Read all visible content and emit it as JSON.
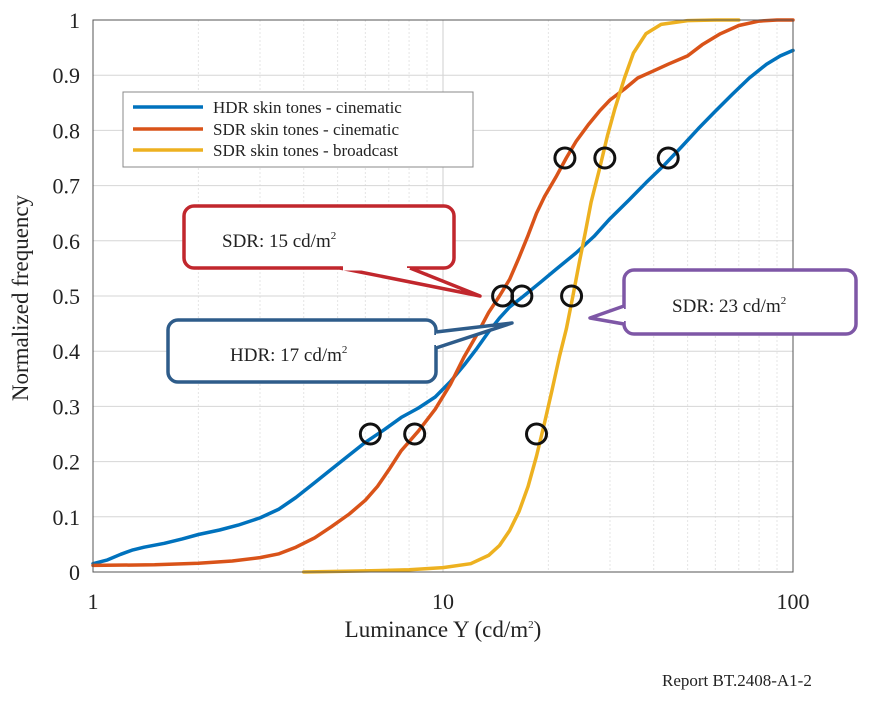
{
  "chart_data": {
    "type": "line",
    "xscale": "log",
    "xlim": [
      1,
      100
    ],
    "ylim": [
      0,
      1
    ],
    "xlabel": "Luminance Y (cd/m",
    "xlabel_sup": "2",
    "xlabel_end": ")",
    "ylabel": "Normalized frequency",
    "xticks": [
      1,
      10,
      100
    ],
    "xtick_labels": [
      "1",
      "10",
      "100"
    ],
    "yticks": [
      0,
      0.1,
      0.2,
      0.3,
      0.4,
      0.5,
      0.6,
      0.7,
      0.8,
      0.9,
      1
    ],
    "ytick_labels": [
      "0",
      "0.1",
      "0.2",
      "0.3",
      "0.4",
      "0.5",
      "0.6",
      "0.7",
      "0.8",
      "0.9",
      "1"
    ],
    "grid": true,
    "legend_position": "top-left",
    "series": [
      {
        "name": "HDR skin tones - cinematic",
        "color": "#0072BD",
        "points": [
          [
            1,
            0.015
          ],
          [
            1.1,
            0.022
          ],
          [
            1.2,
            0.032
          ],
          [
            1.3,
            0.04
          ],
          [
            1.4,
            0.045
          ],
          [
            1.6,
            0.052
          ],
          [
            1.8,
            0.06
          ],
          [
            2,
            0.068
          ],
          [
            2.3,
            0.076
          ],
          [
            2.6,
            0.085
          ],
          [
            3,
            0.098
          ],
          [
            3.4,
            0.114
          ],
          [
            3.8,
            0.135
          ],
          [
            4.3,
            0.162
          ],
          [
            4.8,
            0.186
          ],
          [
            5.4,
            0.212
          ],
          [
            6,
            0.235
          ],
          [
            6.8,
            0.258
          ],
          [
            7.6,
            0.28
          ],
          [
            8.5,
            0.297
          ],
          [
            9.5,
            0.317
          ],
          [
            10.5,
            0.345
          ],
          [
            11.5,
            0.375
          ],
          [
            12.5,
            0.405
          ],
          [
            13.5,
            0.435
          ],
          [
            14.5,
            0.46
          ],
          [
            15.5,
            0.48
          ],
          [
            17,
            0.5
          ],
          [
            19,
            0.525
          ],
          [
            21,
            0.548
          ],
          [
            24,
            0.578
          ],
          [
            27,
            0.608
          ],
          [
            30,
            0.64
          ],
          [
            34,
            0.674
          ],
          [
            38,
            0.705
          ],
          [
            43,
            0.738
          ],
          [
            48,
            0.77
          ],
          [
            54,
            0.805
          ],
          [
            60,
            0.835
          ],
          [
            67,
            0.865
          ],
          [
            75,
            0.895
          ],
          [
            84,
            0.92
          ],
          [
            92,
            0.935
          ],
          [
            100,
            0.945
          ]
        ]
      },
      {
        "name": "SDR skin tones - cinematic",
        "color": "#D95319",
        "points": [
          [
            1,
            0.012
          ],
          [
            1.5,
            0.013
          ],
          [
            2,
            0.016
          ],
          [
            2.5,
            0.02
          ],
          [
            3,
            0.026
          ],
          [
            3.4,
            0.033
          ],
          [
            3.8,
            0.045
          ],
          [
            4.3,
            0.062
          ],
          [
            4.8,
            0.082
          ],
          [
            5.4,
            0.105
          ],
          [
            6,
            0.13
          ],
          [
            6.5,
            0.155
          ],
          [
            7,
            0.185
          ],
          [
            7.6,
            0.22
          ],
          [
            8.5,
            0.255
          ],
          [
            9.5,
            0.295
          ],
          [
            10.5,
            0.34
          ],
          [
            11.5,
            0.39
          ],
          [
            12.5,
            0.43
          ],
          [
            13.5,
            0.47
          ],
          [
            14.5,
            0.5
          ],
          [
            15.5,
            0.53
          ],
          [
            16.5,
            0.57
          ],
          [
            17.5,
            0.61
          ],
          [
            18.5,
            0.65
          ],
          [
            19.5,
            0.68
          ],
          [
            21,
            0.715
          ],
          [
            22.5,
            0.75
          ],
          [
            24,
            0.78
          ],
          [
            26,
            0.81
          ],
          [
            28,
            0.835
          ],
          [
            30,
            0.855
          ],
          [
            33,
            0.875
          ],
          [
            36,
            0.895
          ],
          [
            40,
            0.908
          ],
          [
            44,
            0.92
          ],
          [
            50,
            0.935
          ],
          [
            55,
            0.955
          ],
          [
            62,
            0.975
          ],
          [
            70,
            0.99
          ],
          [
            80,
            0.998
          ],
          [
            90,
            1.0
          ],
          [
            100,
            1.0
          ]
        ]
      },
      {
        "name": "SDR skin tones - broadcast",
        "color": "#EDB120",
        "points": [
          [
            4,
            0.0
          ],
          [
            6,
            0.002
          ],
          [
            8,
            0.004
          ],
          [
            10,
            0.008
          ],
          [
            12,
            0.015
          ],
          [
            13.5,
            0.03
          ],
          [
            14.5,
            0.048
          ],
          [
            15.5,
            0.075
          ],
          [
            16.5,
            0.11
          ],
          [
            17.5,
            0.155
          ],
          [
            18.5,
            0.21
          ],
          [
            19.5,
            0.27
          ],
          [
            20.5,
            0.33
          ],
          [
            21.5,
            0.39
          ],
          [
            22.5,
            0.44
          ],
          [
            23.5,
            0.5
          ],
          [
            24.5,
            0.56
          ],
          [
            25.5,
            0.615
          ],
          [
            26.5,
            0.67
          ],
          [
            28,
            0.73
          ],
          [
            29.5,
            0.79
          ],
          [
            31,
            0.84
          ],
          [
            33,
            0.895
          ],
          [
            35,
            0.94
          ],
          [
            38,
            0.975
          ],
          [
            42,
            0.992
          ],
          [
            50,
            0.999
          ],
          [
            60,
            1.0
          ],
          [
            70,
            1.0
          ]
        ]
      }
    ],
    "markers": [
      [
        6.2,
        0.25
      ],
      [
        8.3,
        0.25
      ],
      [
        18.5,
        0.25
      ],
      [
        14.8,
        0.5
      ],
      [
        16.8,
        0.5
      ],
      [
        23.3,
        0.5
      ],
      [
        22.3,
        0.75
      ],
      [
        29,
        0.75
      ],
      [
        44,
        0.75
      ]
    ],
    "callouts": [
      {
        "label": "SDR: 15 cd/m",
        "sup": "2",
        "color": "#C1272D",
        "target": [
          14.8,
          0.5
        ]
      },
      {
        "label": "HDR: 17 cd/m",
        "sup": "2",
        "color": "#2E5C8A",
        "target": [
          16.8,
          0.455
        ]
      },
      {
        "label": "SDR: 23 cd/m",
        "sup": "2",
        "color": "#7E57A6",
        "target": [
          23.8,
          0.46
        ]
      }
    ]
  },
  "footer": {
    "report_label": "Report BT.2408-A1-2"
  }
}
